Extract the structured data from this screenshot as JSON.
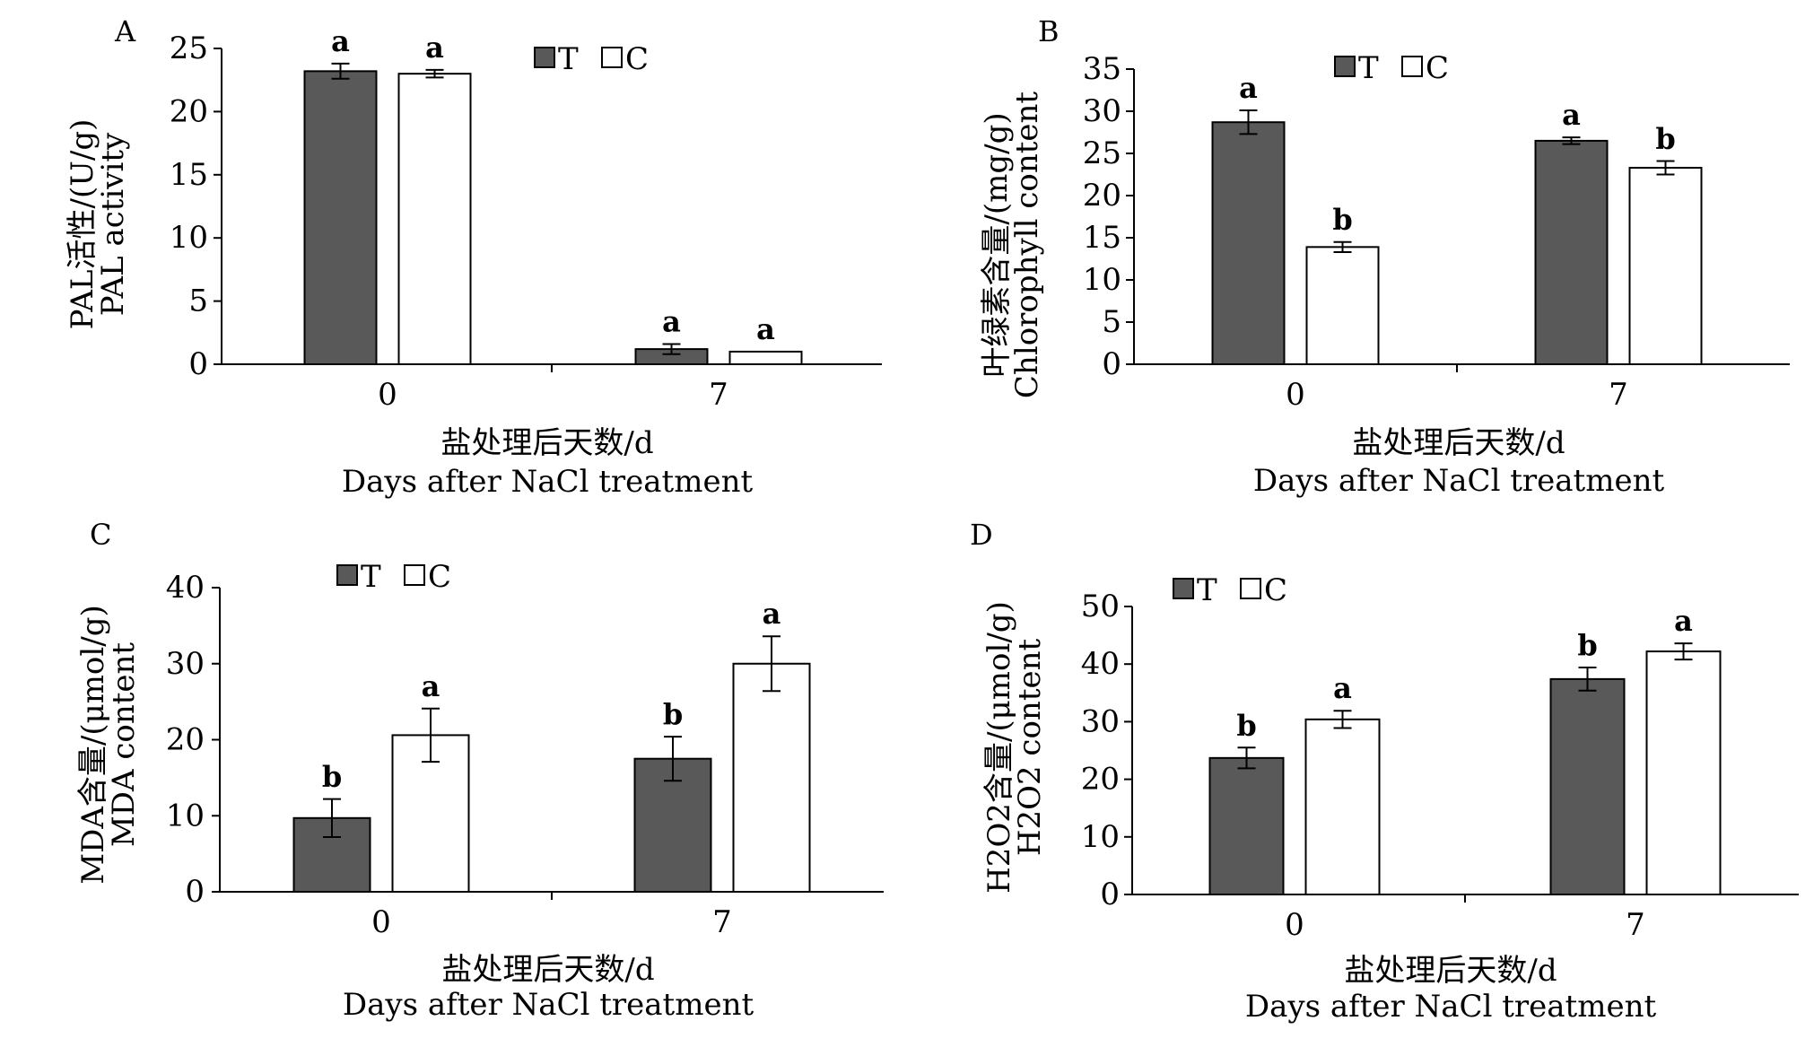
{
  "colors": {
    "T": "#595959",
    "C": "#ffffff",
    "axis": "#000000"
  },
  "chart_data": [
    {
      "panel": "A",
      "type": "bar",
      "categories": [
        "0",
        "7"
      ],
      "ylim": [
        0,
        25
      ],
      "yticks": [
        "0",
        "5",
        "10",
        "15",
        "20",
        "25"
      ],
      "ylabel_cn": "PAL活性/(U/g)",
      "ylabel_en": "PAL activity",
      "xlabel_cn": "盐处理后天数/d",
      "xlabel_en": "Days after NaCl treatment",
      "legend": [
        "T",
        "C"
      ],
      "series": [
        {
          "name": "T",
          "values": [
            23.2,
            1.2
          ],
          "errors": [
            0.6,
            0.4
          ],
          "letters": [
            "a",
            "a"
          ]
        },
        {
          "name": "C",
          "values": [
            23.0,
            1.0
          ],
          "errors": [
            0.3,
            0.0
          ],
          "letters": [
            "a",
            "a"
          ]
        }
      ]
    },
    {
      "panel": "B",
      "type": "bar",
      "categories": [
        "0",
        "7"
      ],
      "ylim": [
        0,
        35
      ],
      "yticks": [
        "0",
        "5",
        "10",
        "15",
        "20",
        "25",
        "30",
        "35"
      ],
      "ylabel_cn": "叶绿素含量/(mg/g)",
      "ylabel_en": "Chlorophyll content",
      "xlabel_cn": "盐处理后天数/d",
      "xlabel_en": "Days after NaCl treatment",
      "legend": [
        "T",
        "C"
      ],
      "series": [
        {
          "name": "T",
          "values": [
            28.7,
            26.5
          ],
          "errors": [
            1.4,
            0.4
          ],
          "letters": [
            "a",
            "a"
          ]
        },
        {
          "name": "C",
          "values": [
            13.9,
            23.3
          ],
          "errors": [
            0.6,
            0.8
          ],
          "letters": [
            "b",
            "b"
          ]
        }
      ]
    },
    {
      "panel": "C",
      "type": "bar",
      "categories": [
        "0",
        "7"
      ],
      "ylim": [
        0,
        40
      ],
      "yticks": [
        "0",
        "10",
        "20",
        "30",
        "40"
      ],
      "ylabel_cn": "MDA含量/(μmol/g)",
      "ylabel_en": "MDA content",
      "xlabel_cn": "盐处理后天数/d",
      "xlabel_en": "Days after NaCl treatment",
      "legend": [
        "T",
        "C"
      ],
      "series": [
        {
          "name": "T",
          "values": [
            9.7,
            17.5
          ],
          "errors": [
            2.5,
            2.9
          ],
          "letters": [
            "b",
            "b"
          ]
        },
        {
          "name": "C",
          "values": [
            20.6,
            30.0
          ],
          "errors": [
            3.5,
            3.6
          ],
          "letters": [
            "a",
            "a"
          ]
        }
      ]
    },
    {
      "panel": "D",
      "type": "bar",
      "categories": [
        "0",
        "7"
      ],
      "ylim": [
        0,
        50
      ],
      "yticks": [
        "0",
        "10",
        "20",
        "30",
        "40",
        "50"
      ],
      "ylabel_cn": "H2O2含量/(μmol/g)",
      "ylabel_en": "H2O2 content",
      "xlabel_cn": "盐处理后天数/d",
      "xlabel_en": "Days after NaCl treatment",
      "legend": [
        "T",
        "C"
      ],
      "series": [
        {
          "name": "T",
          "values": [
            23.7,
            37.4
          ],
          "errors": [
            1.8,
            2.0
          ],
          "letters": [
            "b",
            "b"
          ]
        },
        {
          "name": "C",
          "values": [
            30.4,
            42.2
          ],
          "errors": [
            1.5,
            1.4
          ],
          "letters": [
            "a",
            "a"
          ]
        }
      ]
    }
  ]
}
